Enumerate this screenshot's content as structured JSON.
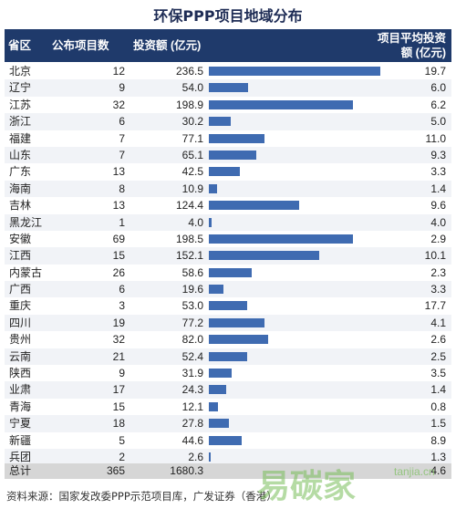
{
  "chart_data": {
    "type": "table",
    "title": "环保PPP项目地域分布",
    "columns": [
      "省区",
      "公布项目数",
      "投资额 (亿元)",
      "项目平均投资额 (亿元)"
    ],
    "rows": [
      {
        "province": "北京",
        "count": "12",
        "investment": "236.5",
        "average": "19.7"
      },
      {
        "province": "辽宁",
        "count": "9",
        "investment": "54.0",
        "average": "6.0"
      },
      {
        "province": "江苏",
        "count": "32",
        "investment": "198.9",
        "average": "6.2"
      },
      {
        "province": "浙江",
        "count": "6",
        "investment": "30.2",
        "average": "5.0"
      },
      {
        "province": "福建",
        "count": "7",
        "investment": "77.1",
        "average": "11.0"
      },
      {
        "province": "山东",
        "count": "7",
        "investment": "65.1",
        "average": "9.3"
      },
      {
        "province": "广东",
        "count": "13",
        "investment": "42.5",
        "average": "3.3"
      },
      {
        "province": "海南",
        "count": "8",
        "investment": "10.9",
        "average": "1.4"
      },
      {
        "province": "吉林",
        "count": "13",
        "investment": "124.4",
        "average": "9.6"
      },
      {
        "province": "黑龙江",
        "count": "1",
        "investment": "4.0",
        "average": "4.0"
      },
      {
        "province": "安徽",
        "count": "69",
        "investment": "198.5",
        "average": "2.9"
      },
      {
        "province": "江西",
        "count": "15",
        "investment": "152.1",
        "average": "10.1"
      },
      {
        "province": "内蒙古",
        "count": "26",
        "investment": "58.6",
        "average": "2.3"
      },
      {
        "province": "广西",
        "count": "6",
        "investment": "19.6",
        "average": "3.3"
      },
      {
        "province": "重庆",
        "count": "3",
        "investment": "53.0",
        "average": "17.7"
      },
      {
        "province": "四川",
        "count": "19",
        "investment": "77.2",
        "average": "4.1"
      },
      {
        "province": "贵州",
        "count": "32",
        "investment": "82.0",
        "average": "2.6"
      },
      {
        "province": "云南",
        "count": "21",
        "investment": "52.4",
        "average": "2.5"
      },
      {
        "province": "陕西",
        "count": "9",
        "investment": "31.9",
        "average": "3.5"
      },
      {
        "province": "业肃",
        "count": "17",
        "investment": "24.3",
        "average": "1.4"
      },
      {
        "province": "青海",
        "count": "15",
        "investment": "12.1",
        "average": "0.8"
      },
      {
        "province": "宁夏",
        "count": "18",
        "investment": "27.8",
        "average": "1.5"
      },
      {
        "province": "新疆",
        "count": "5",
        "investment": "44.6",
        "average": "8.9"
      },
      {
        "province": "兵团",
        "count": "2",
        "investment": "2.6",
        "average": "1.3"
      }
    ],
    "total": {
      "province": "总计",
      "count": "365",
      "investment": "1680.3",
      "average": "4.6"
    },
    "bar_max": 236.5,
    "bar_color": "#3f6bb1",
    "header_color": "#1f3a6b"
  },
  "source": "资料来源：国家发改委PPP示范项目库，广发证券（香港）",
  "watermark": {
    "text": "易碳家",
    "site": "tanjia.cn"
  }
}
